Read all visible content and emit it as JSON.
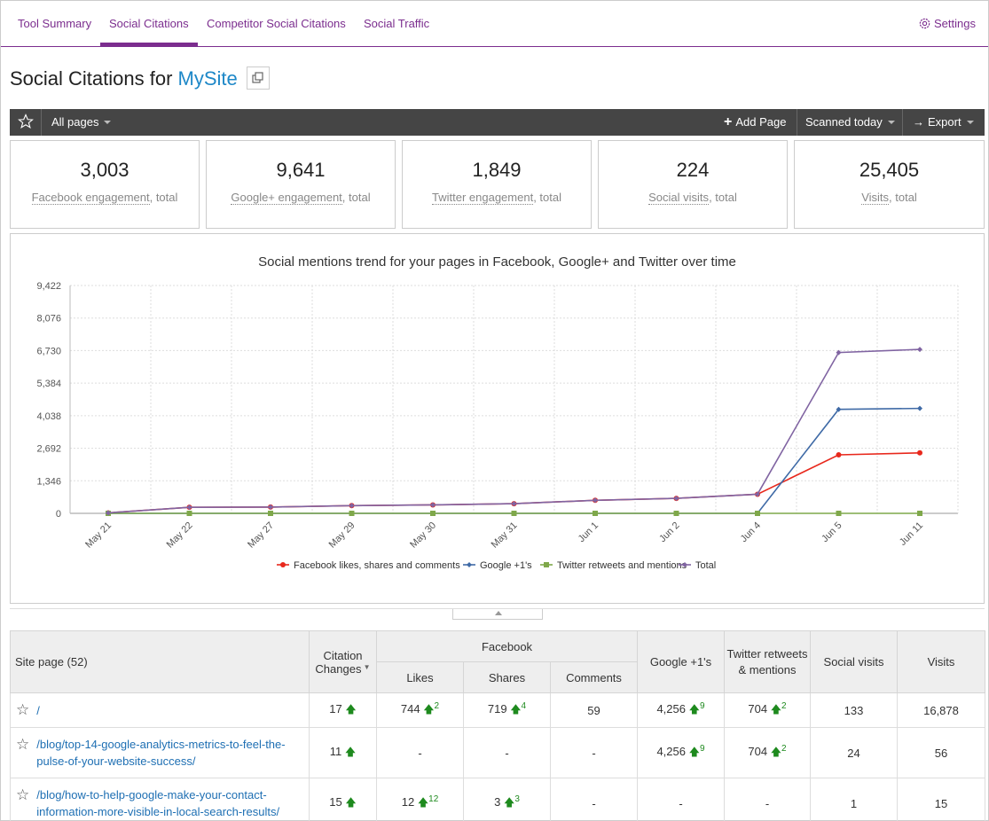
{
  "nav": {
    "tabs": [
      "Tool Summary",
      "Social Citations",
      "Competitor Social Citations",
      "Social Traffic"
    ],
    "settings": "Settings"
  },
  "title": {
    "prefix": "Social Citations for",
    "site": "MySite"
  },
  "toolbar": {
    "pages": "All pages",
    "add": "Add Page",
    "scanned": "Scanned today",
    "export": "Export"
  },
  "cards": [
    {
      "value": "3,003",
      "label": "Facebook engagement",
      "suffix": ", total"
    },
    {
      "value": "9,641",
      "label": "Google+ engagement",
      "suffix": ", total"
    },
    {
      "value": "1,849",
      "label": "Twitter engagement",
      "suffix": ", total"
    },
    {
      "value": "224",
      "label": "Social visits",
      "suffix": ", total"
    },
    {
      "value": "25,405",
      "label": "Visits",
      "suffix": ", total"
    }
  ],
  "chart_data": {
    "type": "line",
    "title": "Social mentions trend for your pages in Facebook, Google+ and Twitter over time",
    "categories": [
      "May 21",
      "May 22",
      "May 27",
      "May 29",
      "May 30",
      "May 31",
      "Jun 1",
      "Jun 2",
      "Jun 4",
      "Jun 5",
      "Jun 11"
    ],
    "yticks": [
      "0",
      "1,346",
      "2,692",
      "4,038",
      "5,384",
      "6,730",
      "8,076",
      "9,422"
    ],
    "ylim": [
      0,
      9422
    ],
    "grid": true,
    "legend_position": "bottom",
    "series": [
      {
        "name": "Facebook likes, shares and comments",
        "color": "#e8281c",
        "values": [
          20,
          250,
          260,
          320,
          350,
          400,
          540,
          620,
          790,
          2420,
          2500
        ]
      },
      {
        "name": "Google +1's",
        "color": "#3f6aa6",
        "values": [
          0,
          0,
          0,
          0,
          0,
          0,
          0,
          0,
          0,
          4300,
          4340
        ]
      },
      {
        "name": "Twitter retweets and mentions",
        "color": "#7fa84a",
        "values": [
          0,
          0,
          0,
          0,
          0,
          0,
          0,
          0,
          0,
          0,
          0
        ]
      },
      {
        "name": "Total",
        "color": "#8064a2",
        "values": [
          20,
          250,
          260,
          320,
          350,
          400,
          540,
          620,
          790,
          6650,
          6780
        ]
      }
    ]
  },
  "table": {
    "headers": {
      "site_page": "Site page (52)",
      "citation": "Citation Changes",
      "facebook": "Facebook",
      "likes": "Likes",
      "shares": "Shares",
      "comments": "Comments",
      "google": "Google +1's",
      "twitter": "Twitter retweets & mentions",
      "social_visits": "Social visits",
      "visits": "Visits"
    },
    "rows": [
      {
        "page": "/",
        "citation": "17",
        "likes": "744",
        "likes_d": "2",
        "shares": "719",
        "shares_d": "4",
        "comments": "59",
        "google": "4,256",
        "google_d": "9",
        "twitter": "704",
        "twitter_d": "2",
        "social_visits": "133",
        "visits": "16,878"
      },
      {
        "page": "/blog/top-14-google-analytics-metrics-to-feel-the-pulse-of-your-website-success/",
        "citation": "11",
        "likes": "-",
        "likes_d": "",
        "shares": "-",
        "shares_d": "",
        "comments": "-",
        "google": "4,256",
        "google_d": "9",
        "twitter": "704",
        "twitter_d": "2",
        "social_visits": "24",
        "visits": "56"
      },
      {
        "page": "/blog/how-to-help-google-make-your-contact-information-more-visible-in-local-search-results/",
        "citation": "15",
        "likes": "12",
        "likes_d": "12",
        "shares": "3",
        "shares_d": "3",
        "comments": "-",
        "google": "-",
        "google_d": "",
        "twitter": "-",
        "twitter_d": "",
        "social_visits": "1",
        "visits": "15"
      }
    ]
  }
}
